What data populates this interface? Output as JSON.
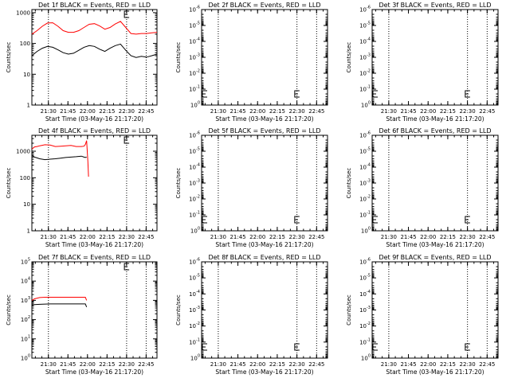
{
  "chart_data": [
    {
      "type": "line",
      "title": "Det 1f BLACK = Events, RED = LLD",
      "xlabel": "Start Time (03-May-16 21:17:20)",
      "ylabel": "Counts/sec",
      "x_ticks": [
        "21:30",
        "21:45",
        "22:00",
        "22:15",
        "22:30",
        "22:45"
      ],
      "y_ticks": [
        "1",
        "10",
        "100",
        "1000"
      ],
      "ylim_log10": [
        0,
        3.1
      ],
      "x_range_minutes": [
        0,
        96
      ],
      "vertical_dotted_lines_minutes": [
        12.7,
        72.7,
        87.7
      ],
      "e_marker_minutes": 71,
      "series": [
        {
          "color": "#ff0000",
          "x": [
            0,
            4,
            8,
            12,
            16,
            20,
            24,
            28,
            32,
            36,
            40,
            44,
            48,
            52,
            56,
            60,
            64,
            68,
            72,
            76,
            80,
            84,
            88,
            92,
            96
          ],
          "y": [
            200,
            260,
            360,
            460,
            470,
            360,
            260,
            230,
            230,
            260,
            330,
            420,
            440,
            370,
            290,
            330,
            430,
            520,
            330,
            210,
            200,
            210,
            210,
            220,
            230
          ]
        },
        {
          "color": "#000000",
          "x": [
            0,
            4,
            8,
            12,
            16,
            20,
            24,
            28,
            32,
            36,
            40,
            44,
            48,
            52,
            56,
            60,
            64,
            68,
            72,
            76,
            80,
            84,
            88,
            92,
            96
          ],
          "y": [
            40,
            55,
            70,
            80,
            75,
            62,
            50,
            45,
            48,
            60,
            75,
            85,
            80,
            65,
            55,
            70,
            85,
            95,
            60,
            40,
            35,
            38,
            36,
            40,
            45
          ]
        }
      ]
    },
    {
      "type": "line",
      "title": "Det 2f BLACK = Events, RED = LLD",
      "xlabel": "Start Time (03-May-16 21:17:20)",
      "ylabel": "Counts/sec",
      "x_ticks": [
        "21:30",
        "21:45",
        "22:00",
        "22:15",
        "22:30",
        "22:45"
      ],
      "y_ticks": [
        "10^0",
        "10^-1",
        "10^-2",
        "10^-3",
        "10^-4",
        "10^-5",
        "10^-6"
      ],
      "ylim_log10": [
        0,
        -6
      ],
      "x_range_minutes": [
        0,
        96
      ],
      "vertical_dotted_lines_minutes": [
        12.7,
        72.7,
        87.7
      ],
      "e_marker_minutes": 71,
      "series": []
    },
    {
      "type": "line",
      "title": "Det 3f BLACK = Events, RED = LLD",
      "xlabel": "Start Time (03-May-16 21:17:20)",
      "ylabel": "Counts/sec",
      "x_ticks": [
        "21:30",
        "21:45",
        "22:00",
        "22:15",
        "22:30",
        "22:45"
      ],
      "y_ticks": [
        "10^0",
        "10^-1",
        "10^-2",
        "10^-3",
        "10^-4",
        "10^-5",
        "10^-6"
      ],
      "ylim_log10": [
        0,
        -6
      ],
      "x_range_minutes": [
        0,
        96
      ],
      "vertical_dotted_lines_minutes": [
        12.7,
        72.7,
        87.7
      ],
      "e_marker_minutes": 71,
      "series": []
    },
    {
      "type": "line",
      "title": "Det 4f BLACK = Events, RED = LLD",
      "xlabel": "Start Time (03-May-16 21:17:20)",
      "ylabel": "Counts/sec",
      "x_ticks": [
        "21:30",
        "21:45",
        "22:00",
        "22:15",
        "22:30",
        "22:45"
      ],
      "y_ticks": [
        "1",
        "10",
        "100",
        "1000"
      ],
      "ylim_log10": [
        0,
        3.6
      ],
      "x_range_minutes": [
        0,
        96
      ],
      "vertical_dotted_lines_minutes": [
        12.7,
        72.7,
        87.7
      ],
      "e_marker_minutes": 71,
      "series": [
        {
          "color": "#ff0000",
          "x": [
            0,
            2,
            4,
            6,
            10,
            14,
            18,
            22,
            26,
            30,
            34,
            38,
            40,
            41,
            42,
            43,
            43.5
          ],
          "y": [
            1200,
            1450,
            1500,
            1600,
            1750,
            1700,
            1500,
            1550,
            1600,
            1650,
            1500,
            1500,
            1550,
            1800,
            2500,
            400,
            110
          ]
        },
        {
          "color": "#000000",
          "x": [
            0,
            2,
            4,
            6,
            10,
            14,
            18,
            22,
            26,
            30,
            34,
            38,
            40,
            41,
            42
          ],
          "y": [
            700,
            600,
            560,
            520,
            480,
            500,
            520,
            550,
            580,
            600,
            620,
            650,
            600,
            580,
            600
          ]
        }
      ]
    },
    {
      "type": "line",
      "title": "Det 5f BLACK = Events, RED = LLD",
      "xlabel": "Start Time (03-May-16 21:17:20)",
      "ylabel": "Counts/sec",
      "x_ticks": [
        "21:30",
        "21:45",
        "22:00",
        "22:15",
        "22:30",
        "22:45"
      ],
      "y_ticks": [
        "10^0",
        "10^-1",
        "10^-2",
        "10^-3",
        "10^-4",
        "10^-5",
        "10^-6"
      ],
      "ylim_log10": [
        0,
        -6
      ],
      "x_range_minutes": [
        0,
        96
      ],
      "vertical_dotted_lines_minutes": [
        12.7,
        72.7,
        87.7
      ],
      "e_marker_minutes": 71,
      "series": []
    },
    {
      "type": "line",
      "title": "Det 6f BLACK = Events, RED = LLD",
      "xlabel": "Start Time (03-May-16 21:17:20)",
      "ylabel": "Counts/sec",
      "x_ticks": [
        "21:30",
        "21:45",
        "22:00",
        "22:15",
        "22:30",
        "22:45"
      ],
      "y_ticks": [
        "10^0",
        "10^-1",
        "10^-2",
        "10^-3",
        "10^-4",
        "10^-5",
        "10^-6"
      ],
      "ylim_log10": [
        0,
        -6
      ],
      "x_range_minutes": [
        0,
        96
      ],
      "vertical_dotted_lines_minutes": [
        12.7,
        72.7,
        87.7
      ],
      "e_marker_minutes": 71,
      "series": []
    },
    {
      "type": "line",
      "title": "Det 7f BLACK = Events, RED = LLD",
      "xlabel": "Start Time (03-May-16 21:17:20)",
      "ylabel": "Counts/sec",
      "x_ticks": [
        "21:30",
        "21:45",
        "22:00",
        "22:15",
        "22:30",
        "22:45"
      ],
      "y_ticks": [
        "10^0",
        "10^1",
        "10^2",
        "10^3",
        "10^4",
        "10^5"
      ],
      "ylim_log10": [
        0,
        5
      ],
      "x_range_minutes": [
        0,
        96
      ],
      "vertical_dotted_lines_minutes": [
        12.7,
        72.7,
        87.7
      ],
      "e_marker_minutes": 71,
      "series": [
        {
          "color": "#ff0000",
          "x": [
            0,
            2,
            6,
            10,
            14,
            18,
            22,
            26,
            30,
            34,
            38,
            41,
            42
          ],
          "y": [
            1000,
            1200,
            1400,
            1450,
            1450,
            1450,
            1450,
            1450,
            1450,
            1450,
            1450,
            1450,
            1000
          ]
        },
        {
          "color": "#000000",
          "x": [
            0,
            2,
            6,
            10,
            14,
            18,
            22,
            26,
            30,
            34,
            38,
            41,
            42
          ],
          "y": [
            550,
            600,
            620,
            640,
            650,
            650,
            650,
            650,
            650,
            650,
            650,
            650,
            450
          ]
        }
      ]
    },
    {
      "type": "line",
      "title": "Det 8f BLACK = Events, RED = LLD",
      "xlabel": "Start Time (03-May-16 21:17:20)",
      "ylabel": "Counts/sec",
      "x_ticks": [
        "21:30",
        "21:45",
        "22:00",
        "22:15",
        "22:30",
        "22:45"
      ],
      "y_ticks": [
        "10^0",
        "10^-1",
        "10^-2",
        "10^-3",
        "10^-4",
        "10^-5",
        "10^-6"
      ],
      "ylim_log10": [
        0,
        -6
      ],
      "x_range_minutes": [
        0,
        96
      ],
      "vertical_dotted_lines_minutes": [
        12.7,
        72.7,
        87.7
      ],
      "e_marker_minutes": 71,
      "series": []
    },
    {
      "type": "line",
      "title": "Det 9f BLACK = Events, RED = LLD",
      "xlabel": "Start Time (03-May-16 21:17:20)",
      "ylabel": "Counts/sec",
      "x_ticks": [
        "21:30",
        "21:45",
        "22:00",
        "22:15",
        "22:30",
        "22:45"
      ],
      "y_ticks": [
        "10^0",
        "10^-1",
        "10^-2",
        "10^-3",
        "10^-4",
        "10^-5",
        "10^-6"
      ],
      "ylim_log10": [
        0,
        -6
      ],
      "x_range_minutes": [
        0,
        96
      ],
      "vertical_dotted_lines_minutes": [
        12.7,
        72.7,
        87.7
      ],
      "e_marker_minutes": 71,
      "series": []
    }
  ]
}
